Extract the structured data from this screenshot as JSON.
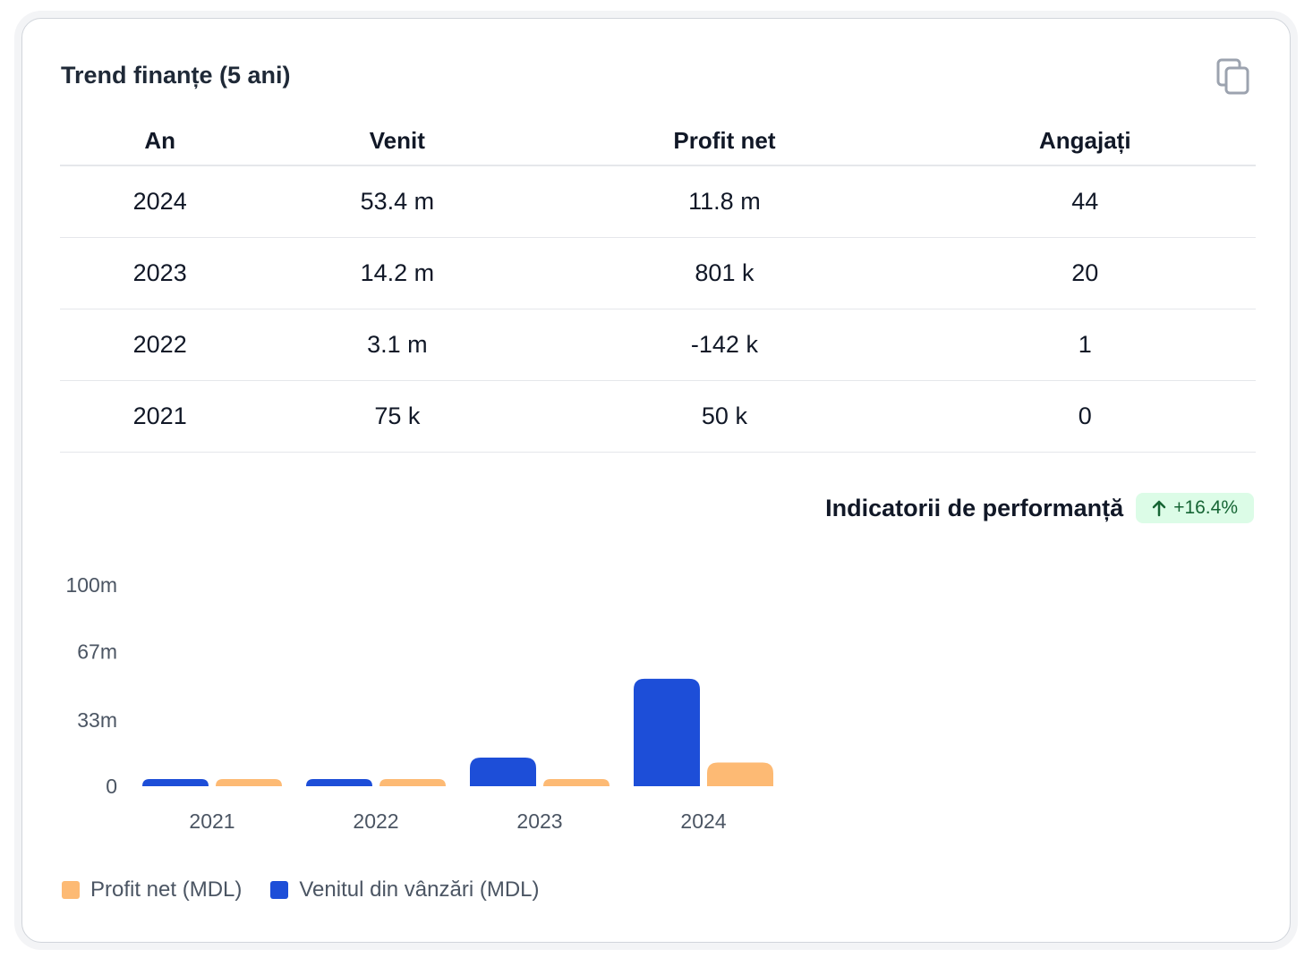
{
  "card": {
    "title": "Trend finanțe (5 ani)",
    "copy_icon": "copy-icon"
  },
  "table": {
    "headers": [
      "An",
      "Venit",
      "Profit net",
      "Angajați"
    ],
    "rows": [
      [
        "2024",
        "53.4 m",
        "11.8 m",
        "44"
      ],
      [
        "2023",
        "14.2 m",
        "801 k",
        "20"
      ],
      [
        "2022",
        "3.1 m",
        "-142 k",
        "1"
      ],
      [
        "2021",
        "75 k",
        "50 k",
        "0"
      ]
    ]
  },
  "performance": {
    "title": "Indicatorii de performanță",
    "badge": "+16.4%",
    "badge_icon": "arrow-up-icon",
    "badge_color": "#166534"
  },
  "chart_data": {
    "type": "bar",
    "categories": [
      "2021",
      "2022",
      "2023",
      "2024"
    ],
    "series": [
      {
        "name": "Venitul din vânzări (MDL)",
        "color": "#1d4ed8",
        "values": [
          75000,
          3100000,
          14200000,
          53400000
        ]
      },
      {
        "name": "Profit net (MDL)",
        "color": "#fdba74",
        "values": [
          50000,
          -142000,
          801000,
          11800000
        ]
      }
    ],
    "yticks": [
      {
        "value": 0,
        "label": "0"
      },
      {
        "value": 33000000,
        "label": "33m"
      },
      {
        "value": 67000000,
        "label": "67m"
      },
      {
        "value": 100000000,
        "label": "100m"
      }
    ],
    "ylim": [
      0,
      100000000
    ],
    "grid": false,
    "legend": [
      {
        "name": "Profit net (MDL)",
        "color": "#fdba74"
      },
      {
        "name": "Venitul din vânzări (MDL)",
        "color": "#1d4ed8"
      }
    ],
    "legend_position": "bottom-left"
  }
}
